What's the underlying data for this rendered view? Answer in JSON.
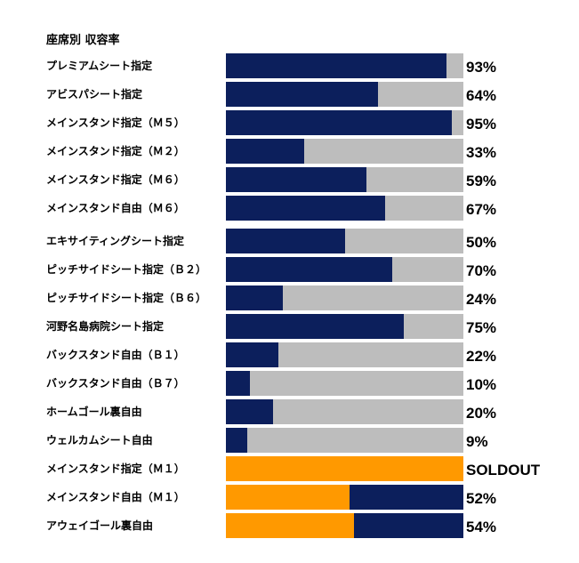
{
  "colors": {
    "filled": "#0c1f5c",
    "remaining": "#bdbdbd",
    "highlight": "#ff9900",
    "text": "#000000"
  },
  "chart_data": {
    "type": "bar",
    "orientation": "horizontal",
    "stacked": true,
    "title": "座席別 収容率",
    "xlabel": "",
    "ylabel": "",
    "xlim": [
      0,
      100
    ],
    "grid": false,
    "categories": [
      "プレミアムシート指定",
      "アビスパシート指定",
      "メインスタンド指定（Ｍ５）",
      "メインスタンド指定（Ｍ２）",
      "メインスタンド指定（Ｍ６）",
      "メインスタンド自由（Ｍ６）",
      "エキサイティングシート指定",
      "ピッチサイドシート指定（Ｂ２）",
      "ピッチサイドシート指定（Ｂ６）",
      "河野名島病院シート指定",
      "バックスタンド自由（Ｂ１）",
      "バックスタンド自由（Ｂ７）",
      "ホームゴール裏自由",
      "ウェルカムシート自由",
      "メインスタンド指定（Ｍ１）",
      "メインスタンド自由（Ｍ１）",
      "アウェイゴール裏自由"
    ],
    "values": [
      93,
      64,
      95,
      33,
      59,
      67,
      50,
      70,
      24,
      75,
      22,
      10,
      20,
      9,
      100,
      52,
      54
    ],
    "value_labels": [
      "93%",
      "64%",
      "95%",
      "33%",
      "59%",
      "67%",
      "50%",
      "70%",
      "24%",
      "75%",
      "22%",
      "10%",
      "20%",
      "9%",
      "SOLDOUT",
      "52%",
      "54%"
    ],
    "highlight_rows": [
      14,
      15,
      16
    ]
  }
}
